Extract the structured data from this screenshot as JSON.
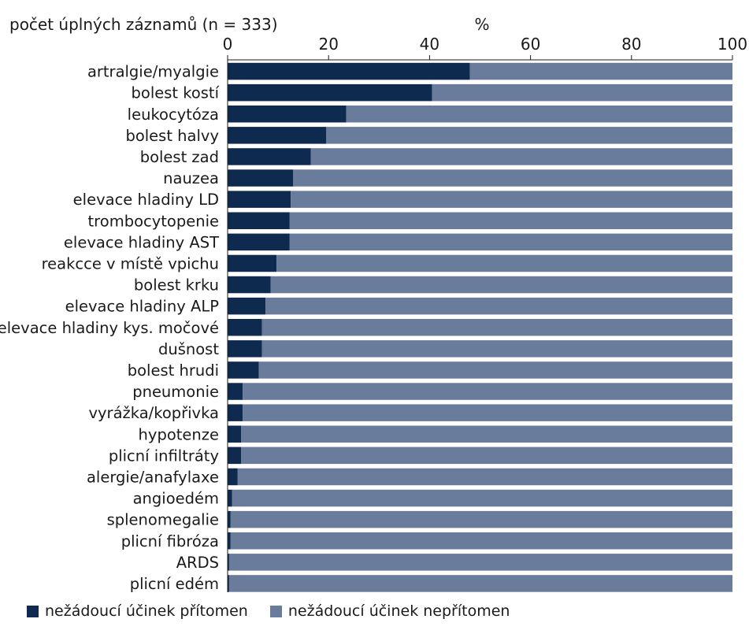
{
  "chart_data": {
    "type": "bar",
    "orientation": "horizontal",
    "stacked": true,
    "title": "počet úplných záznamů (n = 333)",
    "xlabel": "%",
    "xlim": [
      0,
      100
    ],
    "xticks": [
      "0",
      "20",
      "40",
      "60",
      "80",
      "100"
    ],
    "categories": [
      "artralgie/myalgie",
      "bolest kostí",
      "leukocytóza",
      "bolest halvy",
      "bolest zad",
      "nauzea",
      "elevace hladiny LD",
      "trombocytopenie",
      "elevace hladiny AST",
      "reakcce v místě vpichu",
      "bolest krku",
      "elevace hladiny ALP",
      "elevace hladiny kys. močové",
      "dušnost",
      "bolest hrudi",
      "pneumonie",
      "vyrážka/kopřivka",
      "hypotenze",
      "plicní infiltráty",
      "alergie/anafylaxe",
      "angioedém",
      "splenomegalie",
      "plicní fibróza",
      "ARDS",
      "plicní edém"
    ],
    "series": [
      {
        "name": "nežádoucí účinek přítomen",
        "color": "#0f2a4f",
        "values": [
          48,
          40.5,
          23.5,
          19.5,
          16.5,
          13,
          12.5,
          12.3,
          12.3,
          9.7,
          8.5,
          7.5,
          6.8,
          6.8,
          6.2,
          3.0,
          3.0,
          2.7,
          2.7,
          2.0,
          0.9,
          0.6,
          0.6,
          0.3,
          0.3
        ]
      },
      {
        "name": "nežádoucí účinek nepřítomen",
        "color": "#6a7c9b",
        "values": [
          52,
          59.5,
          76.5,
          80.5,
          83.5,
          87,
          87.5,
          87.7,
          87.7,
          90.3,
          91.5,
          92.5,
          93.2,
          93.2,
          93.8,
          97.0,
          97.0,
          97.3,
          97.3,
          98.0,
          99.1,
          99.4,
          99.4,
          99.7,
          99.7
        ]
      }
    ],
    "legend_position": "bottom-left",
    "grid": false
  }
}
